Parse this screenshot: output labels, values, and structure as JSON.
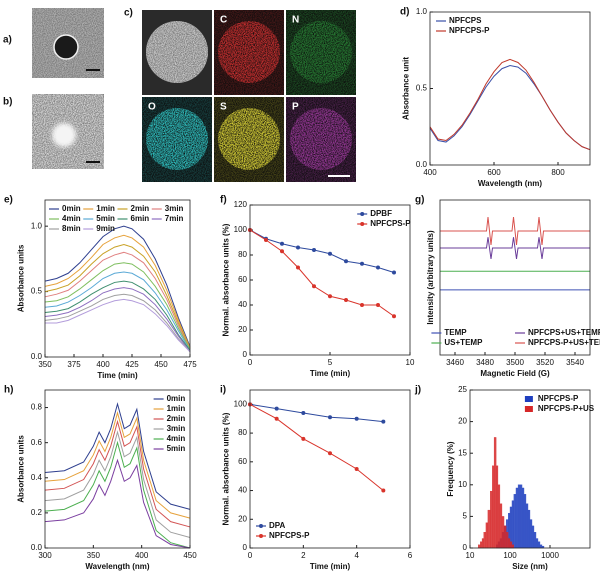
{
  "figure": {
    "panel_a": "a)",
    "panel_b": "b)",
    "panel_c": "c)",
    "eds_labels": [
      "C",
      "N",
      "O",
      "S",
      "P"
    ]
  },
  "chart_data": [
    {
      "type": "line",
      "panel": "d)",
      "xlabel": "Wavelength (nm)",
      "ylabel": "Absorbance unit",
      "legend": "upper left",
      "x": [
        400,
        425,
        450,
        475,
        500,
        525,
        550,
        575,
        600,
        625,
        650,
        675,
        700,
        725,
        750,
        775,
        800,
        825,
        850,
        875,
        900
      ],
      "xlim": [
        400,
        900
      ],
      "xticks": [
        400,
        600,
        800
      ],
      "ylim": [
        0,
        1.0
      ],
      "yticks": [
        {
          "value": 0,
          "label": "0.0"
        },
        0.5,
        {
          "value": 1,
          "label": "1.0"
        }
      ],
      "series": [
        {
          "name": "NPFCPS",
          "color": "#3a4fa8",
          "values": [
            0.24,
            0.16,
            0.15,
            0.19,
            0.25,
            0.33,
            0.42,
            0.51,
            0.58,
            0.63,
            0.65,
            0.64,
            0.6,
            0.53,
            0.45,
            0.36,
            0.28,
            0.21,
            0.16,
            0.12,
            0.1
          ]
        },
        {
          "name": "NPFCPS-P",
          "color": "#c0392b",
          "values": [
            0.25,
            0.17,
            0.16,
            0.2,
            0.26,
            0.34,
            0.43,
            0.53,
            0.61,
            0.67,
            0.69,
            0.67,
            0.62,
            0.54,
            0.45,
            0.36,
            0.28,
            0.21,
            0.16,
            0.12,
            0.1
          ]
        }
      ]
    },
    {
      "type": "line",
      "panel": "e)",
      "xlabel": "Time (min)",
      "ylabel": "Absorbance units",
      "legend": "upper center",
      "x": [
        350,
        360,
        370,
        380,
        390,
        400,
        410,
        418,
        425,
        435,
        445,
        455,
        465,
        475
      ],
      "xlim": [
        350,
        475
      ],
      "xticks": [
        350,
        375,
        400,
        425,
        450,
        475
      ],
      "ylim": [
        0,
        1.2
      ],
      "yticks": [
        {
          "value": 0,
          "label": "0.0"
        },
        0.5,
        {
          "value": 1,
          "label": "1.0"
        }
      ],
      "series": [
        {
          "name": "0min",
          "color": "#2e3f8f",
          "values": [
            0.58,
            0.6,
            0.64,
            0.72,
            0.82,
            0.92,
            0.98,
            1.0,
            0.98,
            0.9,
            0.75,
            0.55,
            0.3,
            0.08
          ]
        },
        {
          "name": "1min",
          "color": "#e6a23c",
          "values": [
            0.54,
            0.56,
            0.6,
            0.67,
            0.76,
            0.86,
            0.91,
            0.93,
            0.91,
            0.84,
            0.7,
            0.51,
            0.28,
            0.07
          ]
        },
        {
          "name": "2min",
          "color": "#c9a227",
          "values": [
            0.5,
            0.52,
            0.55,
            0.62,
            0.71,
            0.79,
            0.84,
            0.86,
            0.84,
            0.77,
            0.65,
            0.47,
            0.26,
            0.07
          ]
        },
        {
          "name": "3min",
          "color": "#e08080",
          "values": [
            0.46,
            0.48,
            0.51,
            0.58,
            0.66,
            0.74,
            0.78,
            0.8,
            0.78,
            0.72,
            0.6,
            0.44,
            0.24,
            0.06
          ]
        },
        {
          "name": "4min",
          "color": "#7fbf5f",
          "values": [
            0.42,
            0.43,
            0.46,
            0.52,
            0.59,
            0.66,
            0.71,
            0.72,
            0.71,
            0.65,
            0.54,
            0.4,
            0.22,
            0.06
          ]
        },
        {
          "name": "5min",
          "color": "#5aa9d6",
          "values": [
            0.38,
            0.39,
            0.42,
            0.47,
            0.53,
            0.6,
            0.64,
            0.65,
            0.64,
            0.59,
            0.49,
            0.36,
            0.2,
            0.05
          ]
        },
        {
          "name": "6min",
          "color": "#3f8f6f",
          "values": [
            0.34,
            0.35,
            0.37,
            0.42,
            0.48,
            0.53,
            0.57,
            0.58,
            0.57,
            0.52,
            0.44,
            0.32,
            0.17,
            0.05
          ]
        },
        {
          "name": "7min",
          "color": "#8e6fc0",
          "values": [
            0.31,
            0.32,
            0.34,
            0.38,
            0.43,
            0.49,
            0.52,
            0.53,
            0.52,
            0.48,
            0.4,
            0.29,
            0.16,
            0.04
          ]
        },
        {
          "name": "8min",
          "color": "#a0a0a0",
          "values": [
            0.28,
            0.29,
            0.31,
            0.35,
            0.39,
            0.44,
            0.47,
            0.48,
            0.47,
            0.43,
            0.36,
            0.26,
            0.14,
            0.04
          ]
        },
        {
          "name": "9min",
          "color": "#b39ddb",
          "values": [
            0.26,
            0.26,
            0.28,
            0.32,
            0.36,
            0.4,
            0.43,
            0.44,
            0.43,
            0.4,
            0.33,
            0.24,
            0.13,
            0.04
          ]
        }
      ]
    },
    {
      "type": "line",
      "panel": "f)",
      "xlabel": "Time (min)",
      "ylabel": "Normal. absorbance units (%)",
      "legend": "upper right",
      "markers": true,
      "x": [
        0,
        1,
        2,
        3,
        4,
        5,
        6,
        7,
        8,
        9
      ],
      "xlim": [
        0,
        10
      ],
      "xticks": [
        0,
        5,
        10
      ],
      "ylim": [
        0,
        120
      ],
      "yticks": [
        0,
        20,
        40,
        60,
        80,
        100,
        120
      ],
      "series": [
        {
          "name": "DPBF",
          "color": "#2e4a9e",
          "values": [
            100,
            93,
            89,
            86,
            84,
            81,
            75,
            73,
            70,
            66
          ]
        },
        {
          "name": "NPFCPS-P",
          "color": "#d9342b",
          "values": [
            100,
            92,
            83,
            70,
            55,
            47,
            44,
            40,
            40,
            31
          ]
        }
      ]
    },
    {
      "type": "line",
      "panel": "g)",
      "xlabel": "Magnetic Field (G)",
      "ylabel": "Intensity (arbitrary units)",
      "legend": "lower center",
      "x": [
        3450,
        3481,
        3482,
        3484,
        3485,
        3498,
        3499,
        3501,
        3502,
        3515,
        3516,
        3518,
        3519,
        3550
      ],
      "xlim": [
        3450,
        3550
      ],
      "xticks": [
        3460,
        3480,
        3500,
        3520,
        3540
      ],
      "ylim": [
        0,
        10
      ],
      "series": [
        {
          "name": "TEMP",
          "color": "#3f51b5",
          "values": [
            4.2,
            4.2,
            4.2,
            4.2,
            4.2,
            4.2,
            4.2,
            4.2,
            4.2,
            4.2,
            4.2,
            4.2,
            4.2,
            4.2
          ]
        },
        {
          "name": "NPFCPS+US+TEMP",
          "color": "#6a3d9a",
          "values": [
            6.9,
            6.9,
            7.6,
            6.2,
            6.9,
            6.9,
            7.6,
            6.2,
            6.9,
            6.9,
            7.6,
            6.2,
            6.9,
            6.9
          ]
        },
        {
          "name": "US+TEMP",
          "color": "#4caf50",
          "values": [
            5.4,
            5.4,
            5.4,
            5.4,
            5.4,
            5.4,
            5.4,
            5.4,
            5.4,
            5.4,
            5.4,
            5.4,
            5.4,
            5.4
          ]
        },
        {
          "name": "NPFCPS-P+US+TEMP",
          "color": "#d9534f",
          "values": [
            8,
            8,
            8.9,
            7.1,
            8,
            8,
            8.9,
            7.1,
            8,
            8,
            8.9,
            7.1,
            8,
            8
          ]
        }
      ]
    },
    {
      "type": "line",
      "panel": "h)",
      "xlabel": "Wavelength (nm)",
      "ylabel": "Absorbance units",
      "legend": "upper right",
      "x": [
        300,
        320,
        340,
        350,
        356,
        362,
        368,
        375,
        382,
        388,
        395,
        402,
        415,
        430,
        450
      ],
      "xlim": [
        300,
        450
      ],
      "xticks": [
        300,
        350,
        400,
        450
      ],
      "ylim": [
        0,
        0.9
      ],
      "yticks": [
        {
          "value": 0,
          "label": "0.0"
        },
        0.2,
        0.4,
        0.6,
        0.8
      ],
      "series": [
        {
          "name": "0min",
          "color": "#2e3f8f",
          "values": [
            0.43,
            0.44,
            0.49,
            0.58,
            0.66,
            0.6,
            0.68,
            0.82,
            0.68,
            0.7,
            0.79,
            0.55,
            0.32,
            0.25,
            0.22
          ]
        },
        {
          "name": "1min",
          "color": "#e6a23c",
          "values": [
            0.38,
            0.39,
            0.44,
            0.53,
            0.61,
            0.55,
            0.63,
            0.77,
            0.63,
            0.65,
            0.74,
            0.5,
            0.27,
            0.2,
            0.17
          ]
        },
        {
          "name": "2min",
          "color": "#d35454",
          "values": [
            0.33,
            0.34,
            0.39,
            0.48,
            0.56,
            0.5,
            0.58,
            0.72,
            0.58,
            0.6,
            0.69,
            0.45,
            0.22,
            0.15,
            0.12
          ]
        },
        {
          "name": "3min",
          "color": "#a0a0a0",
          "values": [
            0.27,
            0.28,
            0.33,
            0.42,
            0.5,
            0.44,
            0.52,
            0.66,
            0.52,
            0.54,
            0.63,
            0.39,
            0.16,
            0.09,
            0.06
          ]
        },
        {
          "name": "4min",
          "color": "#4caf50",
          "values": [
            0.21,
            0.22,
            0.27,
            0.36,
            0.44,
            0.38,
            0.46,
            0.6,
            0.46,
            0.48,
            0.57,
            0.33,
            0.1,
            0.03,
            0.0
          ]
        },
        {
          "name": "5min",
          "color": "#7b3fa0",
          "values": [
            0.15,
            0.16,
            0.2,
            0.28,
            0.36,
            0.3,
            0.38,
            0.5,
            0.38,
            0.4,
            0.47,
            0.26,
            0.07,
            0.02,
            0.0
          ]
        }
      ]
    },
    {
      "type": "line",
      "panel": "i)",
      "xlabel": "Time (min)",
      "ylabel": "Normal. absorbance units (%)",
      "legend": "lower left",
      "markers": true,
      "x": [
        0,
        1,
        2,
        3,
        4,
        5
      ],
      "xlim": [
        0,
        6
      ],
      "xticks": [
        0,
        2,
        4,
        6
      ],
      "ylim": [
        0,
        110
      ],
      "yticks": [
        0,
        20,
        40,
        60,
        80,
        100
      ],
      "series": [
        {
          "name": "DPA",
          "color": "#2e4a9e",
          "values": [
            100,
            97,
            94,
            91,
            90,
            88
          ]
        },
        {
          "name": "NPFCPS-P",
          "color": "#d9342b",
          "values": [
            100,
            90,
            76,
            66,
            55,
            40
          ]
        }
      ]
    },
    {
      "type": "histogram",
      "panel": "j)",
      "xlabel": "Size (nm)",
      "ylabel": "Frequency (%)",
      "legend": "upper right",
      "xscale": "log",
      "bins": [
        16,
        18,
        20,
        22,
        25,
        28,
        32,
        36,
        40,
        45,
        50,
        56,
        63,
        71,
        80,
        90,
        100,
        112,
        125,
        141,
        159,
        178,
        200,
        224,
        251,
        282,
        316,
        355,
        398,
        447,
        501,
        562,
        631,
        708,
        794
      ],
      "xlim": [
        10,
        10000
      ],
      "xticks": [
        10,
        100,
        1000
      ],
      "ylim": [
        0,
        25
      ],
      "yticks": [
        0,
        5,
        10,
        15,
        20,
        25
      ],
      "series": [
        {
          "name": "NPFCPS-P",
          "color": "#1f3fbf",
          "values": [
            0,
            0,
            0,
            0,
            0,
            0,
            0,
            0,
            0,
            0.5,
            1,
            1.5,
            2.5,
            3.5,
            4.5,
            5.5,
            6.5,
            7.5,
            8.5,
            9.5,
            10,
            10,
            9.5,
            8.5,
            7,
            6,
            4.5,
            3.5,
            2.5,
            1.5,
            1,
            0.5,
            0.3,
            0
          ]
        },
        {
          "name": "NPFCPS-P+US",
          "color": "#d62728",
          "values": [
            0.5,
            1,
            1.5,
            2.5,
            4,
            6,
            9,
            13,
            17.5,
            13,
            10,
            7,
            5,
            3.5,
            2.5,
            1.5,
            1,
            0.5,
            0,
            0,
            0,
            0,
            0,
            0,
            0,
            0,
            0,
            0,
            0,
            0,
            0,
            0,
            0,
            0
          ]
        }
      ]
    }
  ]
}
